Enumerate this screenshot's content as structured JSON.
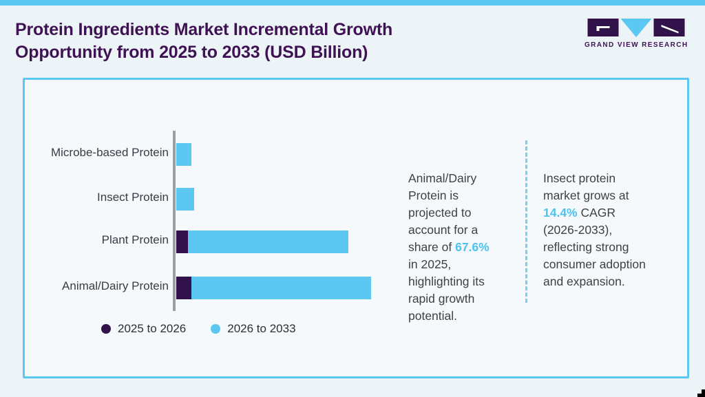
{
  "page": {
    "title": "Protein Ingredients Market Incremental Growth\nOpportunity from 2025 to 2033 (USD Billion)"
  },
  "logo": {
    "text": "GRAND VIEW RESEARCH"
  },
  "colors": {
    "accent_blue": "#5bc8f3",
    "bar_blue": "#5cc8f2",
    "bar_purple": "#31124a",
    "title_purple": "#3e1253",
    "body_text": "#3f3f46",
    "axis_gray": "#9b9ea2"
  },
  "chart_data": {
    "type": "bar",
    "orientation": "horizontal",
    "stacked": true,
    "title": "Protein Ingredients Market Incremental Growth Opportunity from 2025 to 2033 (USD Billion)",
    "value_axis_note": "no numeric axis shown; values are relative bar lengths estimated from pixels",
    "grid": false,
    "legend_position": "bottom-left",
    "categories": [
      "Microbe-based Protein",
      "Insect Protein",
      "Plant Protein",
      "Animal/Dairy Protein"
    ],
    "series": [
      {
        "name": "2025 to 2026",
        "color": "#31124a",
        "values": [
          0,
          0,
          17,
          22
        ]
      },
      {
        "name": "2026 to 2033",
        "color": "#5cc8f2",
        "values": [
          22,
          26,
          233,
          261
        ]
      }
    ]
  },
  "callout1": {
    "before": "Animal/Dairy\nProtein is\nprojected to\naccount for a\nshare of ",
    "accent": "67.6%",
    "after": "\nin 2025,\nhighlighting its\nrapid growth\npotential."
  },
  "callout2": {
    "before": "Insect protein\nmarket grows at\n",
    "accent": "14.4%",
    "after": " CAGR\n(2026-2033),\nreflecting strong\nconsumer adoption\nand expansion."
  }
}
